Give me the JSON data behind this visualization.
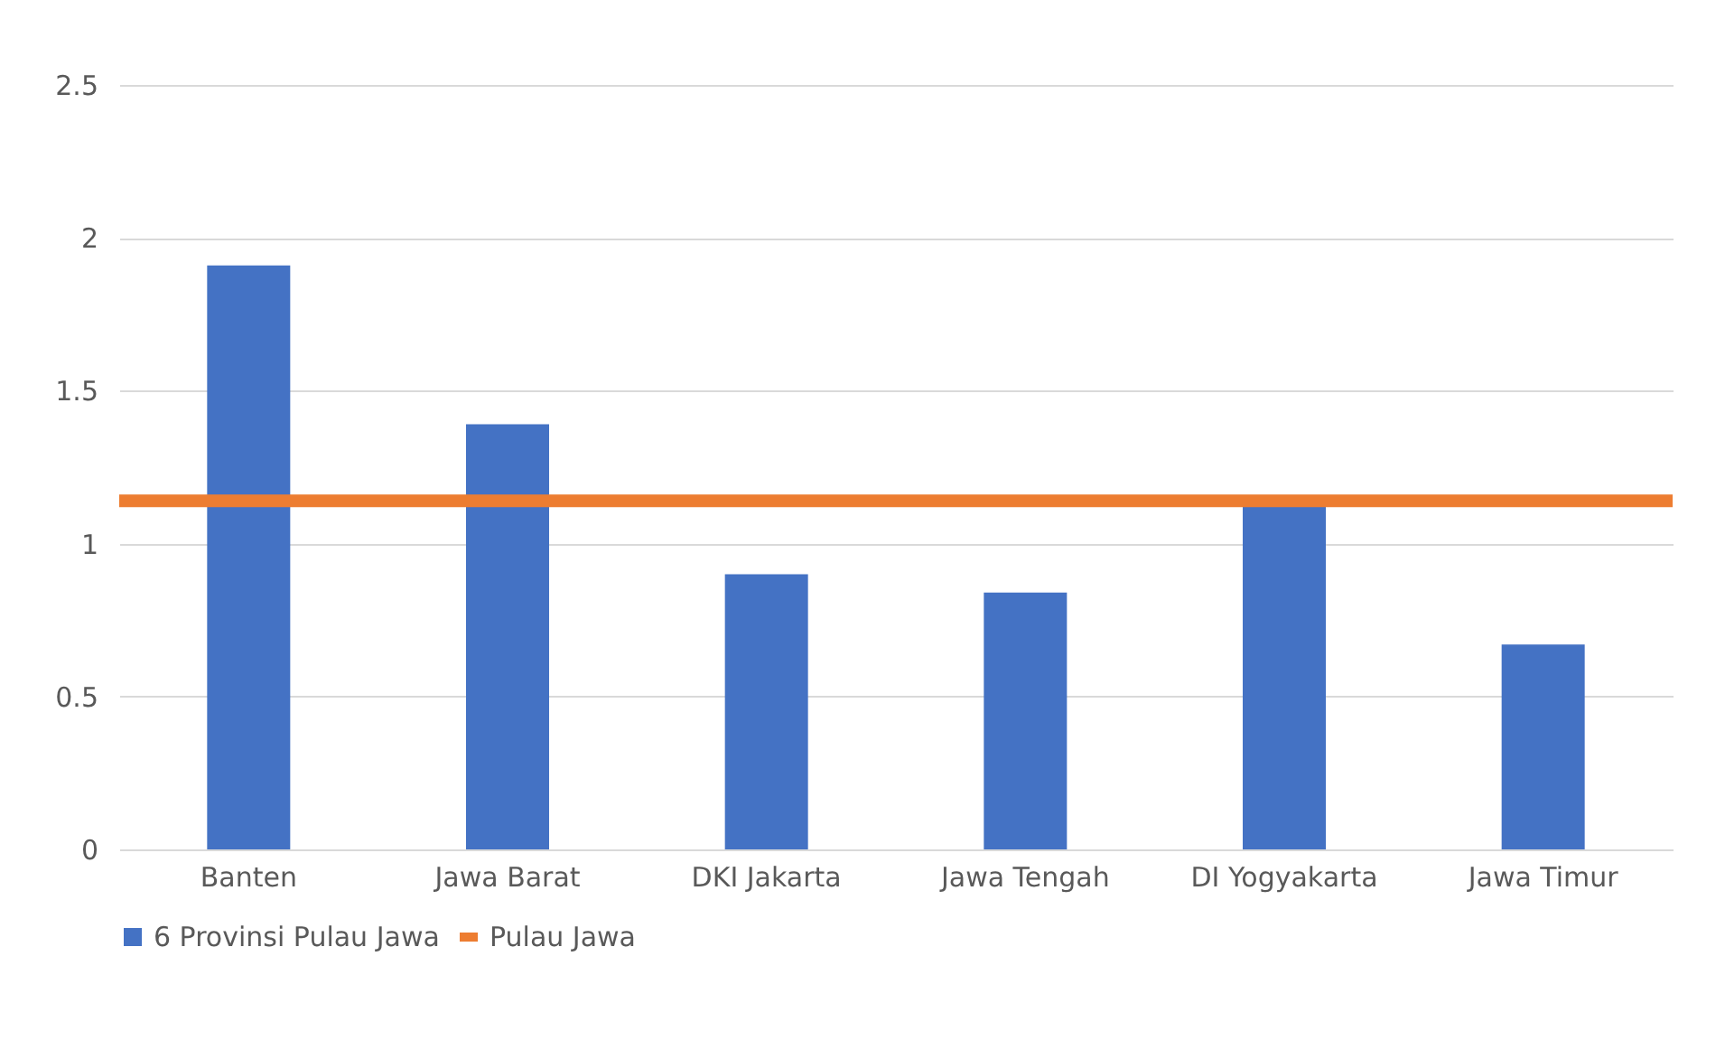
{
  "chart_data": {
    "type": "bar",
    "categories": [
      "Banten",
      "Jawa Barat",
      "DKI Jakarta",
      "Jawa Tengah",
      "DI Yogyakarta",
      "Jawa Timur"
    ],
    "series": [
      {
        "name": "6 Provinsi Pulau Jawa",
        "color": "#4472c4",
        "values": [
          1.91,
          1.39,
          0.9,
          0.84,
          1.12,
          0.67
        ]
      }
    ],
    "ref_lines": [
      {
        "axis": "y",
        "value": 1.14,
        "label": "Pulau Jawa",
        "color": "#ed7d31"
      }
    ],
    "ylim": [
      0,
      2.5
    ],
    "yticks": [
      0,
      0.5,
      1,
      1.5,
      2,
      2.5
    ],
    "grid": "y",
    "legend": "bottom"
  }
}
